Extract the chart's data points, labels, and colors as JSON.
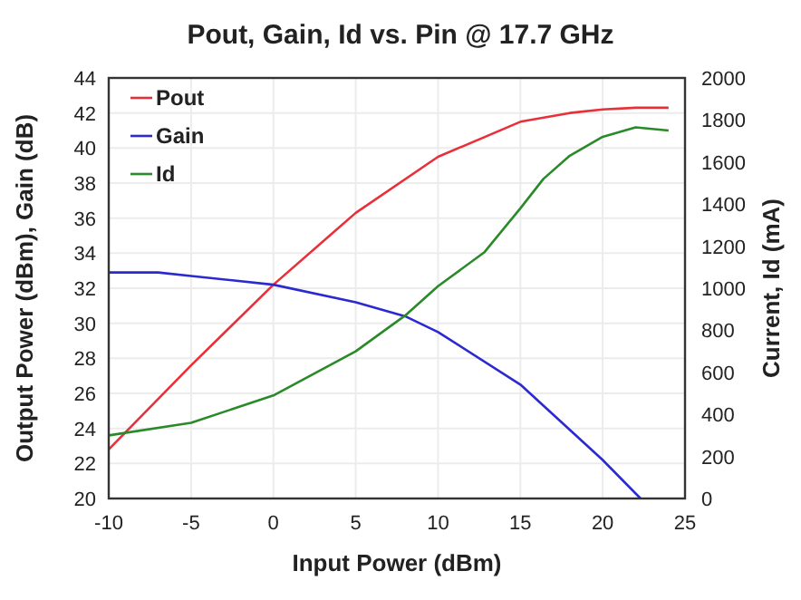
{
  "chart_data": {
    "type": "line",
    "title": "Pout, Gain, Id vs. Pin @ 17.7 GHz",
    "xlabel": "Input Power (dBm)",
    "ylabel": "Output Power (dBm), Gain (dB)",
    "y2label": "Current, Id (mA)",
    "xlim": [
      -10,
      25
    ],
    "xticks": [
      -10,
      -5,
      0,
      5,
      10,
      15,
      20,
      25
    ],
    "ylim": [
      20,
      44
    ],
    "yticks": [
      20,
      22,
      24,
      26,
      28,
      30,
      32,
      34,
      36,
      38,
      40,
      42,
      44
    ],
    "y2lim": [
      0,
      2000
    ],
    "y2ticks": [
      0,
      200,
      400,
      600,
      800,
      1000,
      1200,
      1400,
      1600,
      1800,
      2000
    ],
    "grid": true,
    "legend": "top left",
    "marker": "none",
    "line_style": "solid",
    "series": [
      {
        "name": "Pout",
        "color": "#e8303a",
        "x": [
          -10,
          -5,
          0,
          5,
          10,
          15,
          18,
          20,
          22,
          24
        ],
        "values": [
          22.8,
          27.6,
          32.2,
          36.3,
          39.5,
          41.5,
          42.0,
          42.2,
          42.3,
          42.3
        ]
      },
      {
        "name": "Gain",
        "color": "#2a2ad0",
        "x": [
          -10,
          -7,
          -5,
          0,
          5,
          8,
          10,
          15,
          20,
          22.3
        ],
        "values": [
          32.9,
          32.9,
          32.7,
          32.2,
          31.2,
          30.4,
          29.5,
          26.5,
          22.2,
          20
        ]
      },
      {
        "name": "Id",
        "color": "#2a8a2a",
        "axis": "y2",
        "x": [
          -10,
          -5,
          0,
          5,
          8,
          10,
          12.8,
          15,
          16.4,
          18,
          20,
          22,
          24
        ],
        "values": [
          300,
          360,
          490,
          700,
          870,
          1010,
          1170,
          1380,
          1520,
          1630,
          1720,
          1765,
          1750
        ]
      }
    ]
  }
}
